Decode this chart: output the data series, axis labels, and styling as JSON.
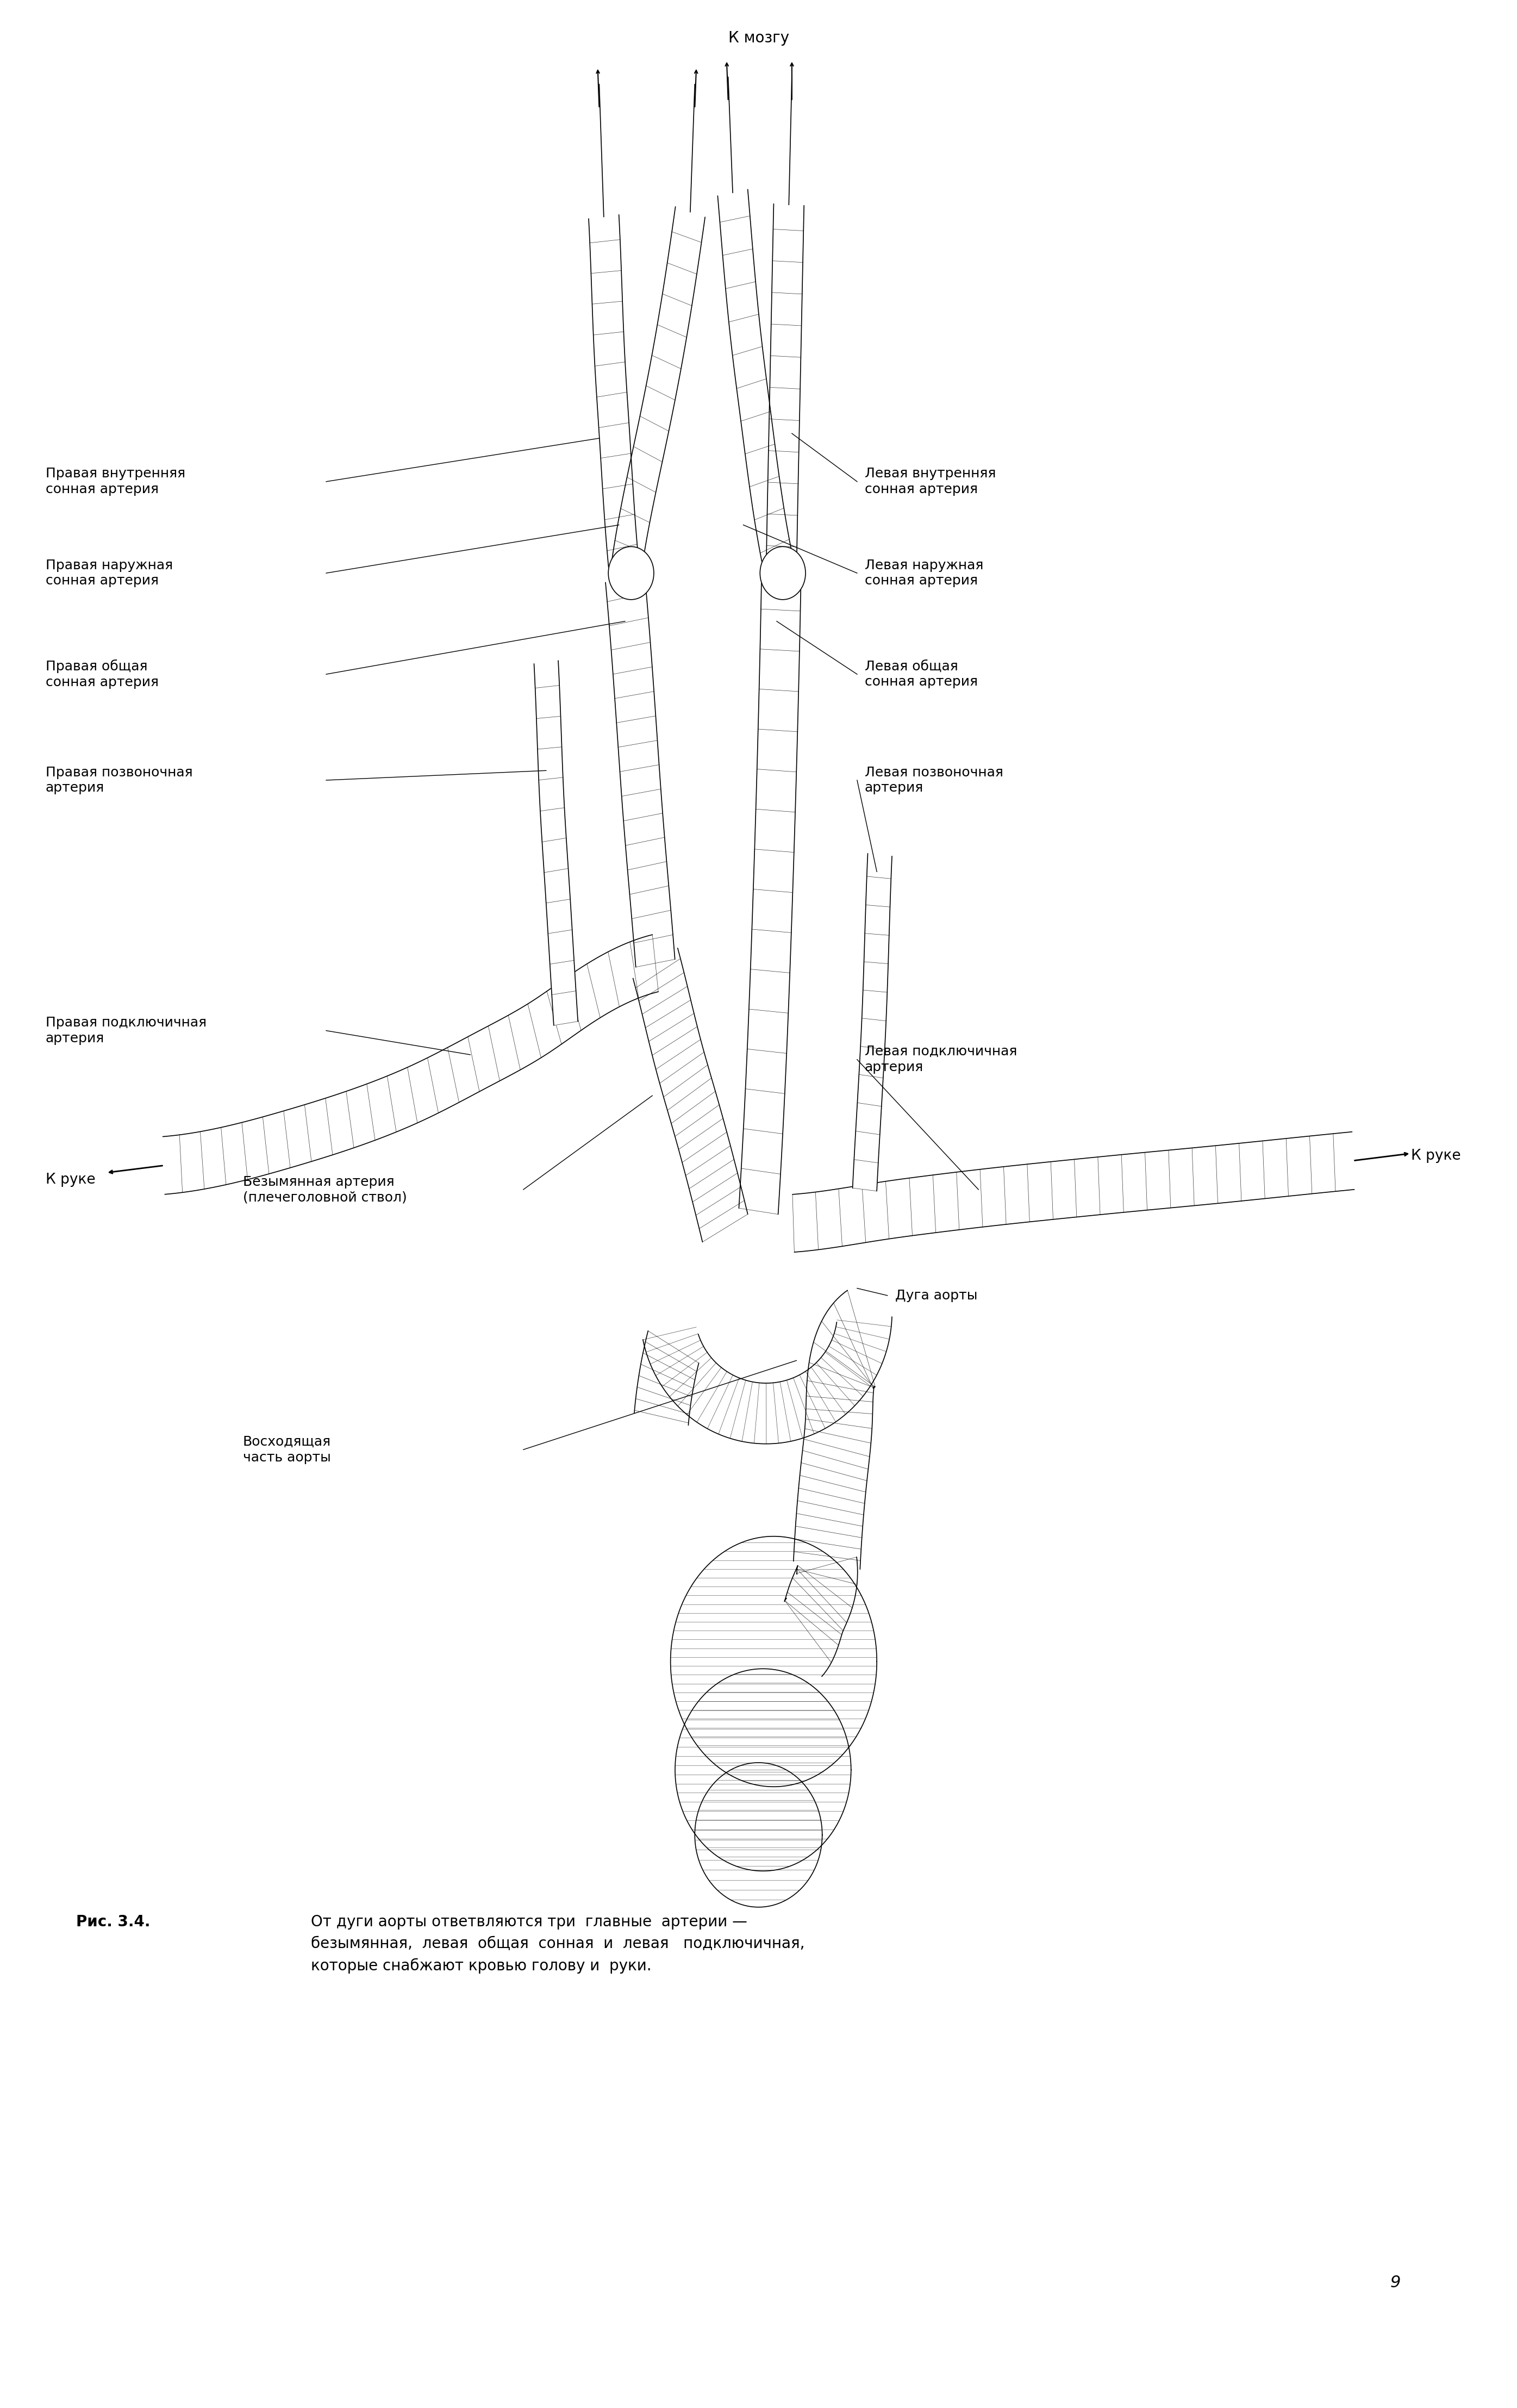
{
  "background_color": "#ffffff",
  "fig_width": 27.91,
  "fig_height": 44.29,
  "page_number": "9",
  "top_label": "К мозгу",
  "left_label": "К руке",
  "right_label": "К руке",
  "caption_bold": "Рис. 3.4.",
  "caption_normal": " От дуги аорты ответвляются три  главные  артерии —\nбезымянная,  левая  общая  сонная  и  левая   подключичная,\nкоторые снабжают кровью голову и руки.",
  "label_fontsize": 18,
  "caption_fontsize": 20,
  "page_fontsize": 22
}
